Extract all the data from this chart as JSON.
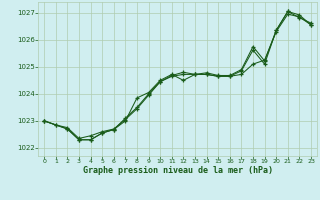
{
  "title": "Graphe pression niveau de la mer (hPa)",
  "bg_color": "#d0eef0",
  "grid_color": "#b0ccb0",
  "line_color": "#1a5c1a",
  "xlim": [
    -0.5,
    23.5
  ],
  "ylim": [
    1021.7,
    1027.4
  ],
  "yticks": [
    1022,
    1023,
    1024,
    1025,
    1026,
    1027
  ],
  "xticks": [
    0,
    1,
    2,
    3,
    4,
    5,
    6,
    7,
    8,
    9,
    10,
    11,
    12,
    13,
    14,
    15,
    16,
    17,
    18,
    19,
    20,
    21,
    22,
    23
  ],
  "line1_x": [
    0,
    1,
    2,
    3,
    4,
    5,
    6,
    7,
    8,
    9,
    10,
    11,
    12,
    13,
    14,
    15,
    16,
    17,
    18,
    19,
    20,
    21,
    22,
    23
  ],
  "line1_y": [
    1023.0,
    1022.85,
    1022.75,
    1022.35,
    1022.45,
    1022.6,
    1022.7,
    1023.05,
    1023.45,
    1023.95,
    1024.45,
    1024.65,
    1024.72,
    1024.72,
    1024.72,
    1024.65,
    1024.65,
    1024.72,
    1025.1,
    1025.25,
    1026.3,
    1026.95,
    1026.85,
    1026.55
  ],
  "line2_x": [
    0,
    2,
    3,
    4,
    5,
    6,
    7,
    8,
    9,
    10,
    11,
    12,
    13,
    14,
    15,
    16,
    17,
    18,
    19,
    20,
    21,
    22,
    23
  ],
  "line2_y": [
    1023.0,
    1022.7,
    1022.3,
    1022.3,
    1022.55,
    1022.68,
    1023.1,
    1023.5,
    1024.0,
    1024.45,
    1024.68,
    1024.8,
    1024.72,
    1024.78,
    1024.68,
    1024.68,
    1024.9,
    1025.75,
    1025.22,
    1026.35,
    1027.05,
    1026.92,
    1026.55
  ],
  "line3_x": [
    0,
    1,
    2,
    3,
    4,
    5,
    6,
    7,
    8,
    9,
    10,
    11,
    12,
    13,
    14,
    15,
    16,
    17,
    18,
    19,
    20,
    21,
    22,
    23
  ],
  "line3_y": [
    1023.0,
    1022.85,
    1022.7,
    1022.3,
    1022.3,
    1022.55,
    1022.68,
    1023.0,
    1023.85,
    1024.05,
    1024.5,
    1024.72,
    1024.5,
    1024.72,
    1024.72,
    1024.65,
    1024.65,
    1024.85,
    1025.62,
    1025.1,
    1026.35,
    1027.05,
    1026.82,
    1026.62
  ]
}
